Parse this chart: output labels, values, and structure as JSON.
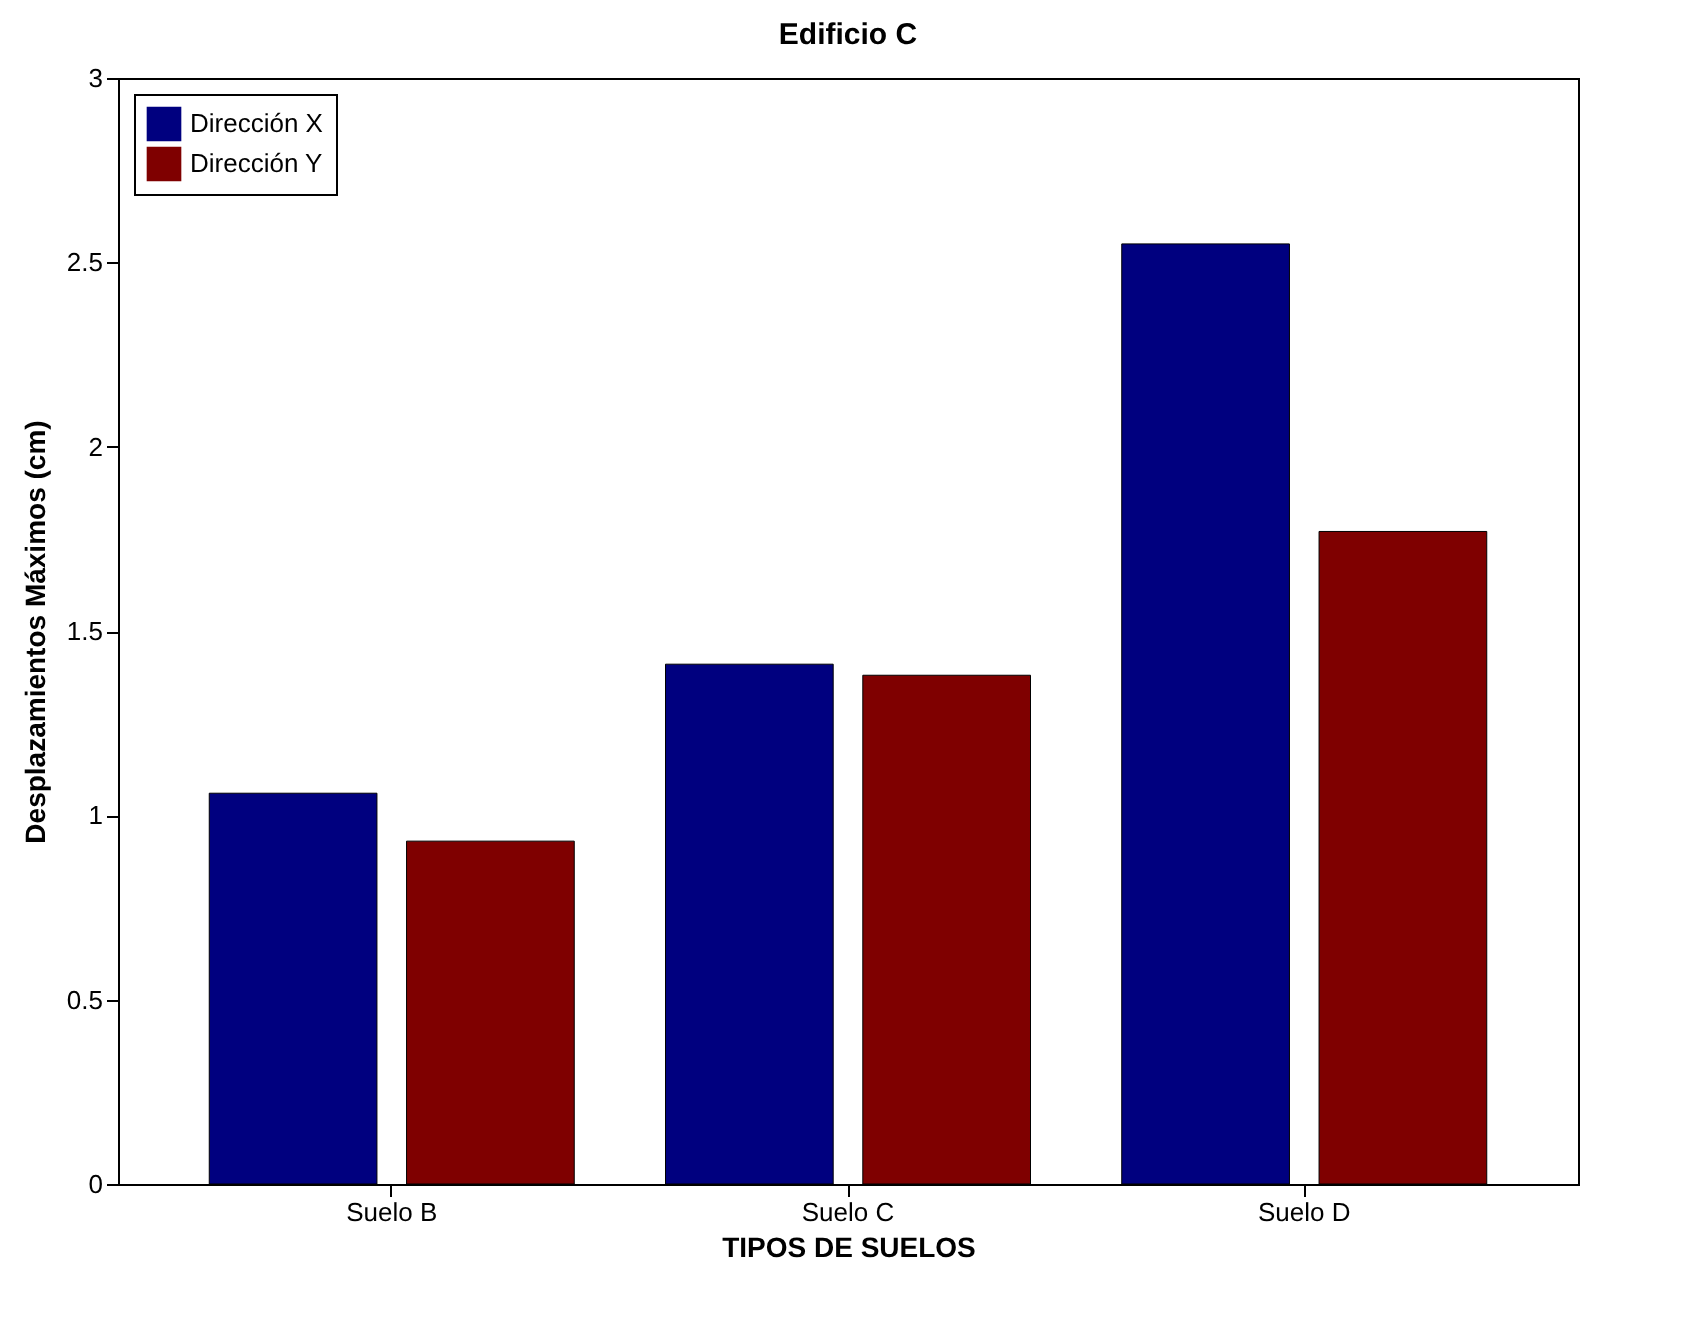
{
  "chart_data": {
    "type": "bar",
    "title": "Edificio C",
    "xlabel": "TIPOS DE SUELOS",
    "ylabel": "Desplazamientos Máximos (cm)",
    "categories": [
      "Suelo B",
      "Suelo C",
      "Suelo D"
    ],
    "series": [
      {
        "name": "Dirección X",
        "color": "#00007f",
        "values": [
          1.06,
          1.41,
          2.55
        ]
      },
      {
        "name": "Dirección Y",
        "color": "#7f0000",
        "values": [
          0.93,
          1.38,
          1.77
        ]
      }
    ],
    "ylim": [
      0,
      3
    ],
    "yticks": [
      0,
      0.5,
      1,
      1.5,
      2,
      2.5,
      3
    ],
    "grid": false,
    "legend": "top left"
  }
}
